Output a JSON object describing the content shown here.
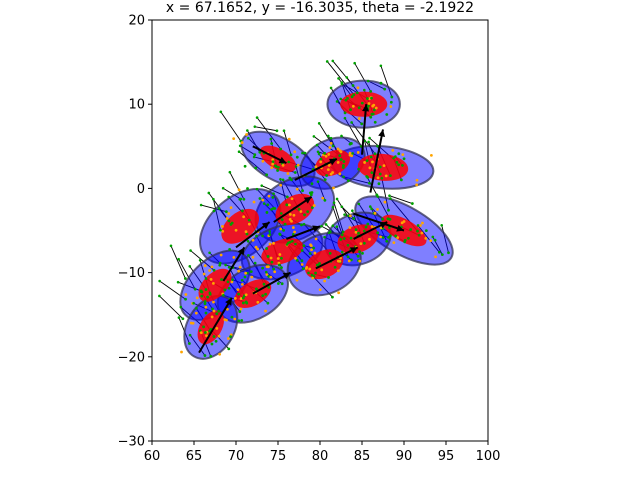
{
  "chart_data": {
    "type": "scatter",
    "title": "x = 67.1652, y = -16.3035, theta = -2.1922",
    "xlabel": "",
    "ylabel": "",
    "xlim": [
      60,
      100
    ],
    "ylim": [
      -30,
      20
    ],
    "xticks": [
      "60",
      "65",
      "70",
      "75",
      "80",
      "85",
      "90",
      "95",
      "100"
    ],
    "yticks": [
      "20",
      "10",
      "0",
      "−10",
      "−20",
      "−30"
    ],
    "grid": false,
    "legend": "none",
    "colors": {
      "outer_ellipse": "#0000ff",
      "inner_ellipse": "#ff0000",
      "arrow": "#000000",
      "particle_green": "#00a000",
      "particle_orange": "#ffa500"
    },
    "ellipses": [
      {
        "cx": 85.2,
        "cy": 10.0,
        "rx": 2.8,
        "ry": 4.3,
        "angle": 90,
        "ix": 1.5,
        "iy": 2.8
      },
      {
        "cx": 87.5,
        "cy": 2.5,
        "rx": 2.5,
        "ry": 6.0,
        "angle": 85,
        "ix": 1.6,
        "iy": 3.0
      },
      {
        "cx": 75.0,
        "cy": 3.5,
        "rx": 4.8,
        "ry": 2.5,
        "angle": -30,
        "ix": 2.4,
        "iy": 1.2
      },
      {
        "cx": 81.5,
        "cy": 3.0,
        "rx": 4.0,
        "ry": 2.8,
        "angle": 25,
        "ix": 2.2,
        "iy": 1.4
      },
      {
        "cx": 90.0,
        "cy": -5.0,
        "rx": 6.5,
        "ry": 2.8,
        "angle": -30,
        "ix": 3.0,
        "iy": 1.3
      },
      {
        "cx": 84.5,
        "cy": -6.0,
        "rx": 4.0,
        "ry": 3.0,
        "angle": 20,
        "ix": 2.5,
        "iy": 1.6
      },
      {
        "cx": 77.0,
        "cy": -2.5,
        "rx": 5.0,
        "ry": 3.5,
        "angle": 30,
        "ix": 2.5,
        "iy": 1.6
      },
      {
        "cx": 70.5,
        "cy": -4.5,
        "rx": 5.5,
        "ry": 3.5,
        "angle": 40,
        "ix": 2.6,
        "iy": 1.6
      },
      {
        "cx": 75.5,
        "cy": -7.5,
        "rx": 5.0,
        "ry": 3.0,
        "angle": 20,
        "ix": 2.6,
        "iy": 1.4
      },
      {
        "cx": 80.5,
        "cy": -9.0,
        "rx": 4.5,
        "ry": 3.5,
        "angle": 25,
        "ix": 2.4,
        "iy": 1.6
      },
      {
        "cx": 67.5,
        "cy": -11.5,
        "rx": 5.0,
        "ry": 3.0,
        "angle": 45,
        "ix": 2.4,
        "iy": 1.4
      },
      {
        "cx": 72.0,
        "cy": -12.5,
        "rx": 4.5,
        "ry": 3.0,
        "angle": 30,
        "ix": 2.4,
        "iy": 1.4
      },
      {
        "cx": 67.0,
        "cy": -16.5,
        "rx": 4.0,
        "ry": 2.8,
        "angle": 60,
        "ix": 2.2,
        "iy": 1.3
      }
    ],
    "arrows": [
      {
        "x1": 65.6,
        "y1": -19.5,
        "x2": 69.5,
        "y2": -13.0
      },
      {
        "x1": 72.0,
        "y1": -12.5,
        "x2": 76.5,
        "y2": -10.0
      },
      {
        "x1": 68.5,
        "y1": -11.0,
        "x2": 71.0,
        "y2": -7.0
      },
      {
        "x1": 70.0,
        "y1": -7.0,
        "x2": 74.0,
        "y2": -4.0
      },
      {
        "x1": 76.0,
        "y1": -6.0,
        "x2": 80.0,
        "y2": -4.5
      },
      {
        "x1": 79.5,
        "y1": -9.5,
        "x2": 84.5,
        "y2": -7.0
      },
      {
        "x1": 84.0,
        "y1": -6.0,
        "x2": 88.0,
        "y2": -4.0
      },
      {
        "x1": 84.0,
        "y1": -3.0,
        "x2": 90.0,
        "y2": -5.0
      },
      {
        "x1": 86.0,
        "y1": -0.5,
        "x2": 87.5,
        "y2": 7.0
      },
      {
        "x1": 85.0,
        "y1": 4.0,
        "x2": 85.5,
        "y2": 10.0
      },
      {
        "x1": 77.0,
        "y1": 1.0,
        "x2": 82.0,
        "y2": 3.5
      },
      {
        "x1": 72.0,
        "y1": 5.0,
        "x2": 76.0,
        "y2": 3.0
      },
      {
        "x1": 74.5,
        "y1": -4.0,
        "x2": 79.0,
        "y2": -1.0
      }
    ]
  }
}
